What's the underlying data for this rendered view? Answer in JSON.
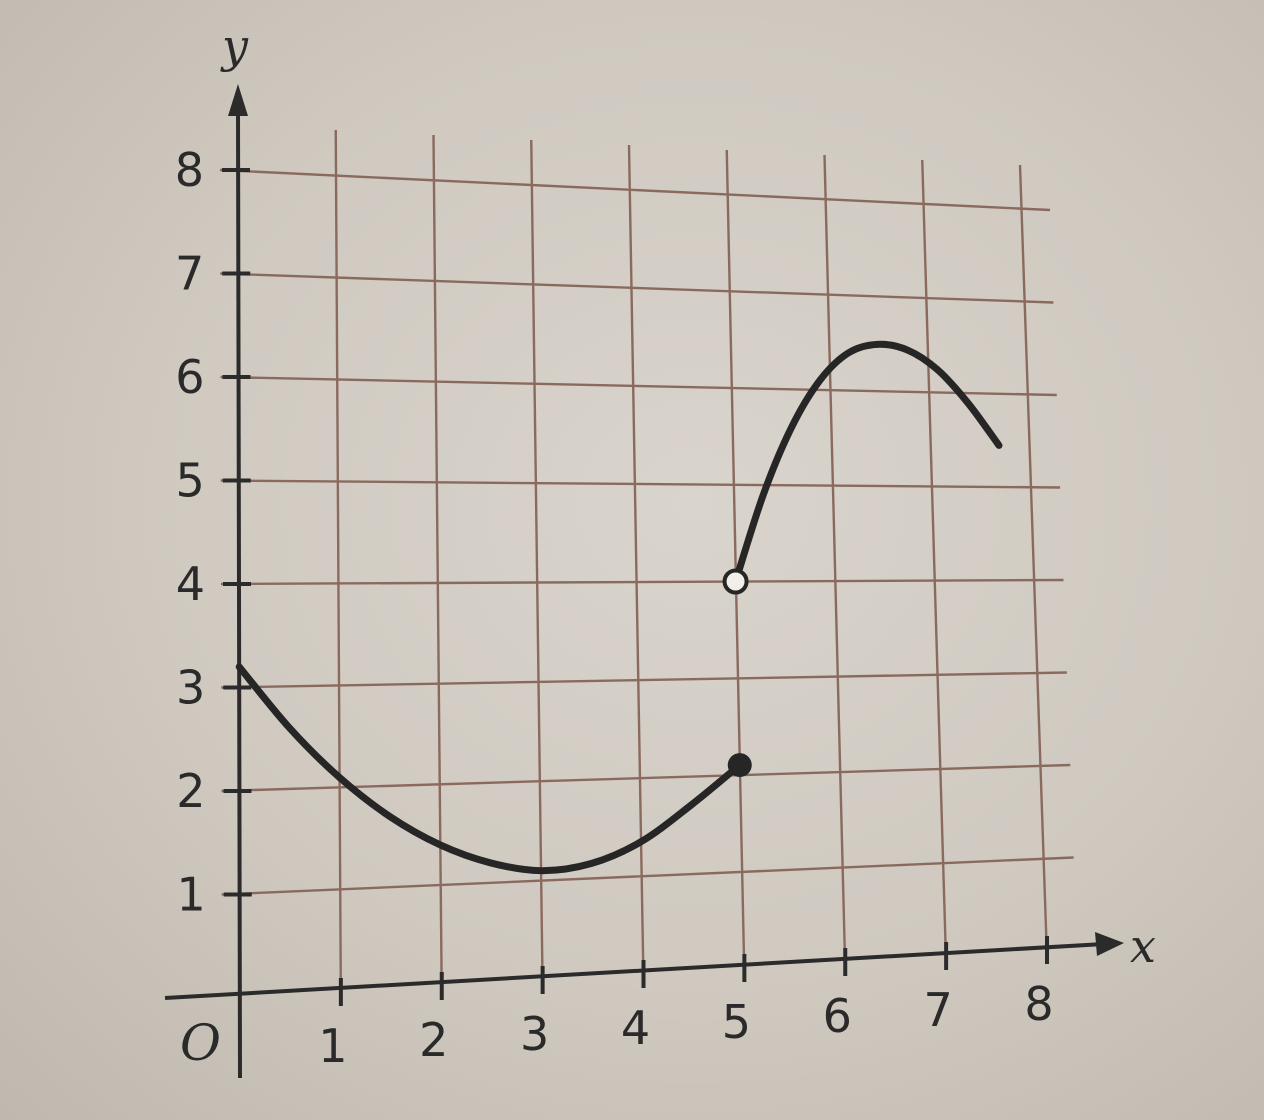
{
  "chart_data": {
    "type": "line",
    "xlabel": "x",
    "ylabel": "y",
    "origin_label": "O",
    "xlim": [
      0,
      8
    ],
    "ylim": [
      0,
      8
    ],
    "x_ticks": [
      "1",
      "2",
      "3",
      "4",
      "5",
      "6",
      "7",
      "8"
    ],
    "y_ticks": [
      "1",
      "2",
      "3",
      "4",
      "5",
      "6",
      "7",
      "8"
    ],
    "grid": true,
    "series": [
      {
        "x": [
          0,
          0.5,
          1,
          1.5,
          2,
          2.5,
          3,
          3.5,
          4,
          4.5,
          5
        ],
        "y": [
          3.2,
          2.6,
          2.1,
          1.7,
          1.4,
          1.2,
          1.1,
          1.15,
          1.35,
          1.7,
          2.1
        ],
        "end_point": {
          "x": 5,
          "y": 2.1,
          "style": "closed"
        }
      },
      {
        "x": [
          5,
          5.3,
          5.6,
          5.9,
          6.2,
          6.5,
          6.8,
          7.1,
          7.4,
          7.7
        ],
        "y": [
          4,
          4.9,
          5.6,
          6.1,
          6.4,
          6.5,
          6.45,
          6.25,
          5.9,
          5.45
        ],
        "start_point": {
          "x": 5,
          "y": 4,
          "style": "open"
        }
      }
    ],
    "colors": {
      "grid": "#8a6a5e",
      "axes": "#2b2b2b",
      "curve": "#262626",
      "open_point_fill": "#f2efea"
    }
  }
}
